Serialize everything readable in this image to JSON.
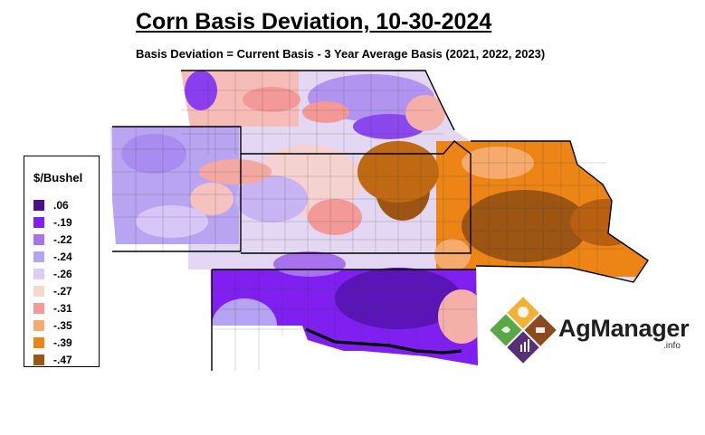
{
  "title": "Corn Basis Deviation, 10-30-2024",
  "subtitle": "Basis Deviation = Current Basis - 3 Year Average Basis (2021, 2022, 2023)",
  "legend": {
    "title": "$/Bushel",
    "items": [
      {
        "label": ".06",
        "color": "#4b0f8c"
      },
      {
        "label": "-.19",
        "color": "#7f1ff0"
      },
      {
        "label": "-.22",
        "color": "#a872ee"
      },
      {
        "label": "-.24",
        "color": "#b5a4f2"
      },
      {
        "label": "-.26",
        "color": "#dccdf6"
      },
      {
        "label": "-.27",
        "color": "#f8d8cc"
      },
      {
        "label": "-.31",
        "color": "#f39a98"
      },
      {
        "label": "-.35",
        "color": "#f6ab6c"
      },
      {
        "label": "-.39",
        "color": "#ec8516"
      },
      {
        "label": "-.47",
        "color": "#9c5512"
      }
    ]
  },
  "logo": {
    "name": "AgManager",
    "suffix": ".info"
  }
}
